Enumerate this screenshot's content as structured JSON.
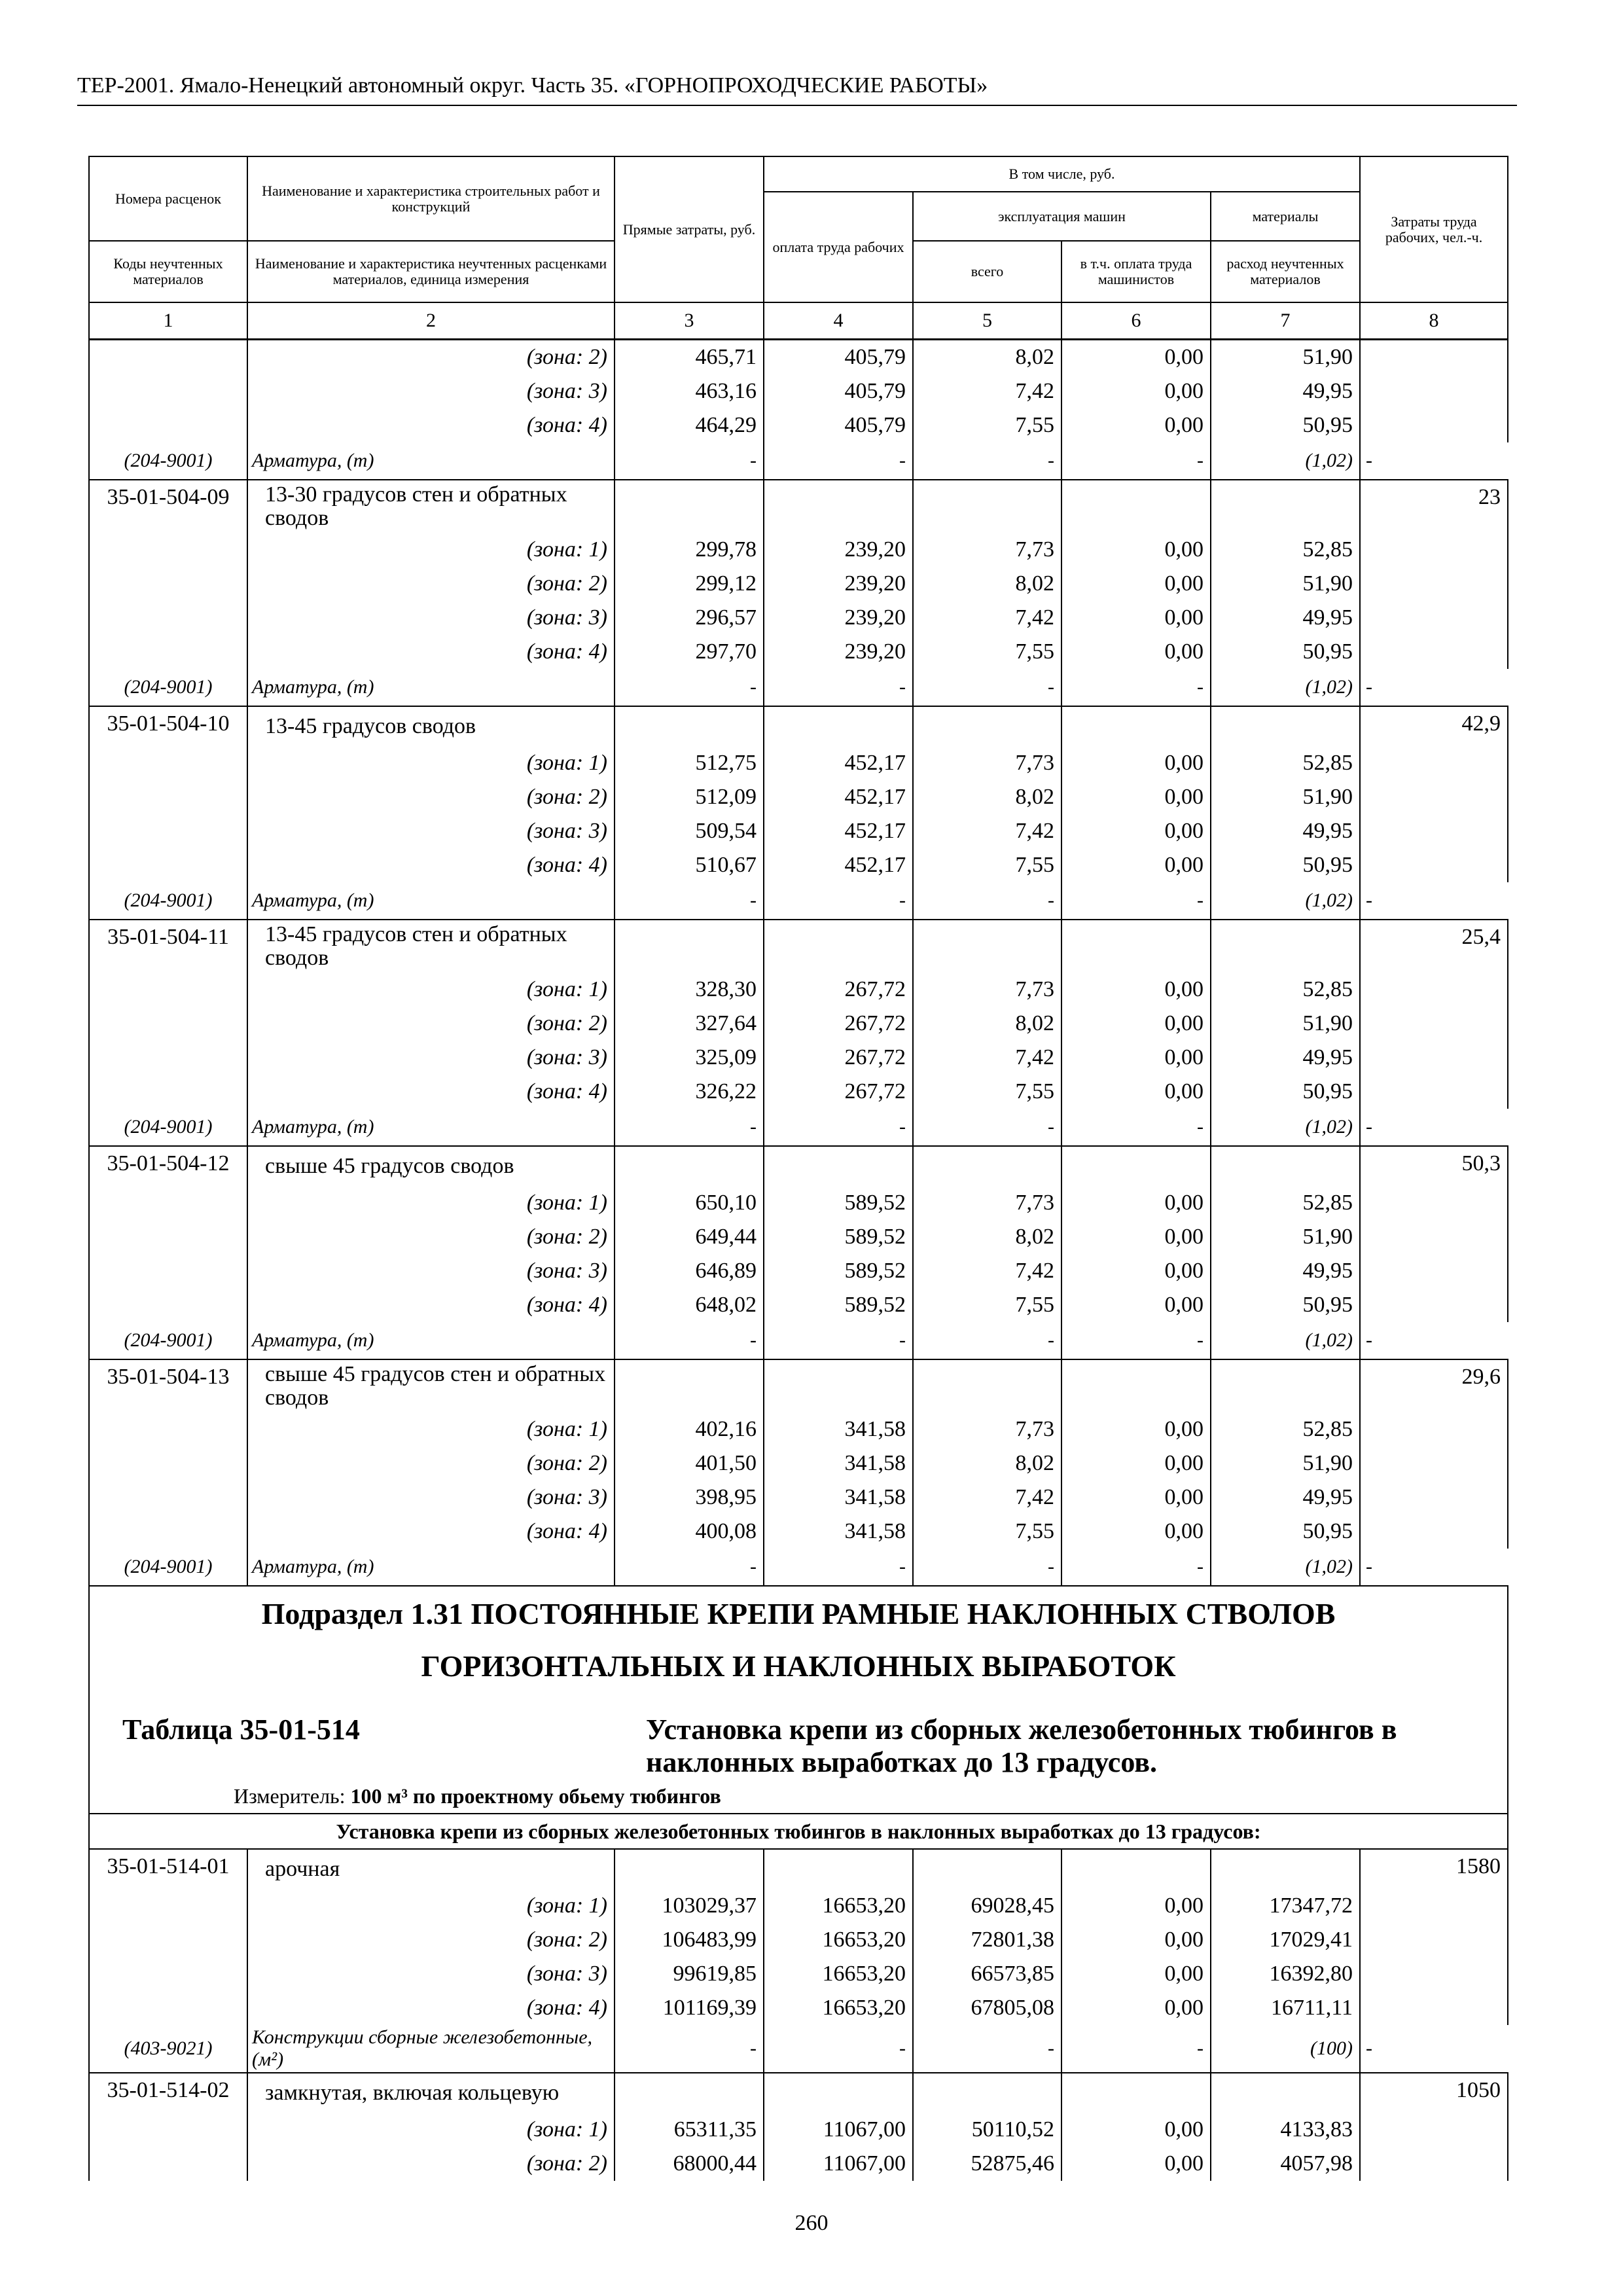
{
  "header": {
    "running_title": "ТЕР-2001. Ямало-Ненецкий автономный округ. Часть 35. «ГОРНОПРОХОДЧЕСКИЕ РАБОТЫ»"
  },
  "table_header": {
    "col1_top": "Номера расценок",
    "col1_bottom": "Коды неучтенных материалов",
    "col2_top": "Наименование и характеристика строительных работ и конструкций",
    "col2_bottom": "Наименование и характеристика неучтенных расценками материалов, единица измерения",
    "col3": "Прямые затраты, руб.",
    "including": "В том числе, руб.",
    "col4": "оплата труда рабочих",
    "machines": "эксплуатация машин",
    "materials": "материалы",
    "col5": "всего",
    "col6": "в т.ч. оплата труда машинистов",
    "col7": "расход неучтенных материалов",
    "col8": "Затраты труда рабочих, чел.-ч.",
    "numbers": [
      "1",
      "2",
      "3",
      "4",
      "5",
      "6",
      "7",
      "8"
    ]
  },
  "blocks1": [
    {
      "code": "",
      "title": "",
      "labor": "",
      "zones": [
        {
          "label": "(зона: 2)",
          "values": [
            "465,71",
            "405,79",
            "8,02",
            "0,00",
            "51,90"
          ]
        },
        {
          "label": "(зона: 3)",
          "values": [
            "463,16",
            "405,79",
            "7,42",
            "0,00",
            "49,95"
          ]
        },
        {
          "label": "(зона: 4)",
          "values": [
            "464,29",
            "405,79",
            "7,55",
            "0,00",
            "50,95"
          ]
        }
      ],
      "material": {
        "code": "(204-9001)",
        "name": "Арматура, (т)",
        "values": [
          "-",
          "-",
          "-",
          "-",
          "(1,02)"
        ],
        "labor": "-"
      }
    },
    {
      "code": "35-01-504-09",
      "title": "13-30 градусов стен и обратных сводов",
      "labor": "23",
      "zones": [
        {
          "label": "(зона: 1)",
          "values": [
            "299,78",
            "239,20",
            "7,73",
            "0,00",
            "52,85"
          ]
        },
        {
          "label": "(зона: 2)",
          "values": [
            "299,12",
            "239,20",
            "8,02",
            "0,00",
            "51,90"
          ]
        },
        {
          "label": "(зона: 3)",
          "values": [
            "296,57",
            "239,20",
            "7,42",
            "0,00",
            "49,95"
          ]
        },
        {
          "label": "(зона: 4)",
          "values": [
            "297,70",
            "239,20",
            "7,55",
            "0,00",
            "50,95"
          ]
        }
      ],
      "material": {
        "code": "(204-9001)",
        "name": "Арматура, (т)",
        "values": [
          "-",
          "-",
          "-",
          "-",
          "(1,02)"
        ],
        "labor": "-"
      }
    },
    {
      "code": "35-01-504-10",
      "title": "13-45 градусов сводов",
      "labor": "42,9",
      "zones": [
        {
          "label": "(зона: 1)",
          "values": [
            "512,75",
            "452,17",
            "7,73",
            "0,00",
            "52,85"
          ]
        },
        {
          "label": "(зона: 2)",
          "values": [
            "512,09",
            "452,17",
            "8,02",
            "0,00",
            "51,90"
          ]
        },
        {
          "label": "(зона: 3)",
          "values": [
            "509,54",
            "452,17",
            "7,42",
            "0,00",
            "49,95"
          ]
        },
        {
          "label": "(зона: 4)",
          "values": [
            "510,67",
            "452,17",
            "7,55",
            "0,00",
            "50,95"
          ]
        }
      ],
      "material": {
        "code": "(204-9001)",
        "name": "Арматура, (т)",
        "values": [
          "-",
          "-",
          "-",
          "-",
          "(1,02)"
        ],
        "labor": "-"
      }
    },
    {
      "code": "35-01-504-11",
      "title": "13-45 градусов стен и обратных сводов",
      "labor": "25,4",
      "zones": [
        {
          "label": "(зона: 1)",
          "values": [
            "328,30",
            "267,72",
            "7,73",
            "0,00",
            "52,85"
          ]
        },
        {
          "label": "(зона: 2)",
          "values": [
            "327,64",
            "267,72",
            "8,02",
            "0,00",
            "51,90"
          ]
        },
        {
          "label": "(зона: 3)",
          "values": [
            "325,09",
            "267,72",
            "7,42",
            "0,00",
            "49,95"
          ]
        },
        {
          "label": "(зона: 4)",
          "values": [
            "326,22",
            "267,72",
            "7,55",
            "0,00",
            "50,95"
          ]
        }
      ],
      "material": {
        "code": "(204-9001)",
        "name": "Арматура, (т)",
        "values": [
          "-",
          "-",
          "-",
          "-",
          "(1,02)"
        ],
        "labor": "-"
      }
    },
    {
      "code": "35-01-504-12",
      "title": "свыше 45 градусов сводов",
      "labor": "50,3",
      "zones": [
        {
          "label": "(зона: 1)",
          "values": [
            "650,10",
            "589,52",
            "7,73",
            "0,00",
            "52,85"
          ]
        },
        {
          "label": "(зона: 2)",
          "values": [
            "649,44",
            "589,52",
            "8,02",
            "0,00",
            "51,90"
          ]
        },
        {
          "label": "(зона: 3)",
          "values": [
            "646,89",
            "589,52",
            "7,42",
            "0,00",
            "49,95"
          ]
        },
        {
          "label": "(зона: 4)",
          "values": [
            "648,02",
            "589,52",
            "7,55",
            "0,00",
            "50,95"
          ]
        }
      ],
      "material": {
        "code": "(204-9001)",
        "name": "Арматура, (т)",
        "values": [
          "-",
          "-",
          "-",
          "-",
          "(1,02)"
        ],
        "labor": "-"
      }
    },
    {
      "code": "35-01-504-13",
      "title": "свыше 45 градусов стен и обратных сводов",
      "labor": "29,6",
      "zones": [
        {
          "label": "(зона: 1)",
          "values": [
            "402,16",
            "341,58",
            "7,73",
            "0,00",
            "52,85"
          ]
        },
        {
          "label": "(зона: 2)",
          "values": [
            "401,50",
            "341,58",
            "8,02",
            "0,00",
            "51,90"
          ]
        },
        {
          "label": "(зона: 3)",
          "values": [
            "398,95",
            "341,58",
            "7,42",
            "0,00",
            "49,95"
          ]
        },
        {
          "label": "(зона: 4)",
          "values": [
            "400,08",
            "341,58",
            "7,55",
            "0,00",
            "50,95"
          ]
        }
      ],
      "material": {
        "code": "(204-9001)",
        "name": "Арматура, (т)",
        "values": [
          "-",
          "-",
          "-",
          "-",
          "(1,02)"
        ],
        "labor": "-"
      }
    }
  ],
  "subsection": {
    "title_line1": "Подраздел 1.31 ПОСТОЯННЫЕ КРЕПИ РАМНЫЕ НАКЛОННЫХ СТВОЛОВ",
    "title_line2": "ГОРИЗОНТАЛЬНЫХ И НАКЛОННЫХ ВЫРАБОТОК",
    "table_number": "Таблица 35-01-514",
    "table_name": "Установка крепи из сборных железобетонных тюбингов в наклонных выработках до 13 градусов.",
    "measure_label": "Измеритель:",
    "measure_value": "100 м³ по проектному обьему тюбингов",
    "group_heading": "Установка крепи из сборных железобетонных тюбингов в наклонных выработках до 13 градусов:"
  },
  "blocks2": [
    {
      "code": "35-01-514-01",
      "title": "арочная",
      "labor": "1580",
      "zones": [
        {
          "label": "(зона: 1)",
          "values": [
            "103029,37",
            "16653,20",
            "69028,45",
            "0,00",
            "17347,72"
          ]
        },
        {
          "label": "(зона: 2)",
          "values": [
            "106483,99",
            "16653,20",
            "72801,38",
            "0,00",
            "17029,41"
          ]
        },
        {
          "label": "(зона: 3)",
          "values": [
            "99619,85",
            "16653,20",
            "66573,85",
            "0,00",
            "16392,80"
          ]
        },
        {
          "label": "(зона: 4)",
          "values": [
            "101169,39",
            "16653,20",
            "67805,08",
            "0,00",
            "16711,11"
          ]
        }
      ],
      "material": {
        "code": "(403-9021)",
        "name": "Конструкции сборные железобетонные, (м²)",
        "values": [
          "-",
          "-",
          "-",
          "-",
          "(100)"
        ],
        "labor": "-"
      }
    },
    {
      "code": "35-01-514-02",
      "title": "замкнутая, включая кольцевую",
      "labor": "1050",
      "zones": [
        {
          "label": "(зона: 1)",
          "values": [
            "65311,35",
            "11067,00",
            "50110,52",
            "0,00",
            "4133,83"
          ]
        },
        {
          "label": "(зона: 2)",
          "values": [
            "68000,44",
            "11067,00",
            "52875,46",
            "0,00",
            "4057,98"
          ]
        }
      ]
    }
  ],
  "footer": {
    "page_number": "260"
  }
}
